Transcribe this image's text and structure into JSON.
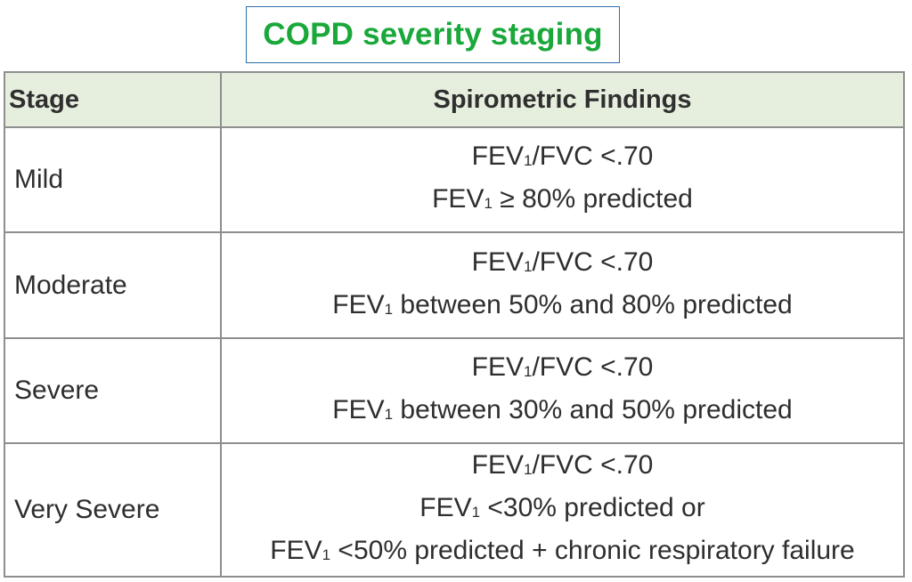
{
  "title": "COPD severity staging",
  "table": {
    "headers": {
      "stage": "Stage",
      "findings": "Spirometric Findings"
    },
    "rows": [
      {
        "stage": "Mild",
        "lines": [
          {
            "pre": "FEV",
            "sub": "1",
            "post": "/FVC <.70"
          },
          {
            "pre": "FEV",
            "sub": "1",
            "post": " ≥ 80% predicted"
          }
        ]
      },
      {
        "stage": "Moderate",
        "lines": [
          {
            "pre": "FEV",
            "sub": "1",
            "post": "/FVC <.70"
          },
          {
            "pre": "FEV",
            "sub": "1",
            "post": " between 50% and 80% predicted"
          }
        ]
      },
      {
        "stage": "Severe",
        "lines": [
          {
            "pre": "FEV",
            "sub": "1",
            "post": "/FVC <.70"
          },
          {
            "pre": "FEV",
            "sub": "1",
            "post": " between 30% and 50% predicted"
          }
        ]
      },
      {
        "stage": "Very Severe",
        "lines": [
          {
            "pre": "FEV",
            "sub": "1",
            "post": "/FVC <.70"
          },
          {
            "pre": "FEV",
            "sub": "1",
            "post": " <30% predicted or"
          },
          {
            "pre": "FEV",
            "sub": "1",
            "post": " <50% predicted + chronic respiratory failure"
          }
        ]
      }
    ]
  },
  "colors": {
    "title_text": "#1aa83a",
    "title_border": "#2f6fb0",
    "header_bg": "#e6efde",
    "grid": "#8e8e8e",
    "text": "#2e2e2e"
  }
}
